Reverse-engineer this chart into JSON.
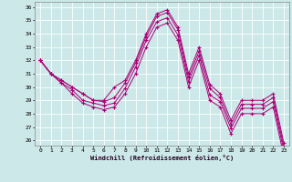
{
  "xlabel": "Windchill (Refroidissement éolien,°C)",
  "bg_color": "#cce8e8",
  "line_color": "#aa0077",
  "grid_color": "#ffffff",
  "xlim": [
    -0.5,
    23.5
  ],
  "ylim": [
    25.6,
    36.4
  ],
  "yticks": [
    26,
    27,
    28,
    29,
    30,
    31,
    32,
    33,
    34,
    35,
    36
  ],
  "xticks": [
    0,
    1,
    2,
    3,
    4,
    5,
    6,
    7,
    8,
    9,
    10,
    11,
    12,
    13,
    14,
    15,
    16,
    17,
    18,
    19,
    20,
    21,
    22,
    23
  ],
  "lines": [
    [
      32.0,
      31.0,
      30.5,
      30.0,
      29.5,
      29.0,
      29.0,
      30.0,
      30.5,
      32.0,
      34.0,
      35.5,
      35.8,
      34.5,
      31.0,
      33.0,
      30.2,
      29.5,
      27.5,
      29.0,
      29.0,
      29.0,
      29.5,
      25.8
    ],
    [
      32.0,
      31.0,
      30.5,
      30.0,
      29.5,
      29.0,
      28.9,
      29.2,
      30.3,
      31.8,
      33.8,
      35.3,
      35.6,
      34.3,
      30.7,
      32.7,
      29.9,
      29.2,
      27.2,
      28.7,
      28.7,
      28.7,
      29.2,
      25.5
    ],
    [
      32.0,
      31.0,
      30.3,
      29.8,
      29.0,
      28.8,
      28.6,
      28.8,
      29.9,
      31.5,
      33.5,
      34.9,
      35.2,
      33.9,
      30.4,
      32.4,
      29.4,
      28.9,
      26.9,
      28.4,
      28.4,
      28.4,
      28.9,
      25.2
    ],
    [
      32.0,
      31.0,
      30.3,
      29.5,
      28.8,
      28.5,
      28.3,
      28.5,
      29.5,
      31.0,
      33.0,
      34.5,
      34.8,
      33.5,
      30.0,
      32.0,
      29.0,
      28.5,
      26.5,
      28.0,
      28.0,
      28.0,
      28.5,
      24.8
    ]
  ]
}
